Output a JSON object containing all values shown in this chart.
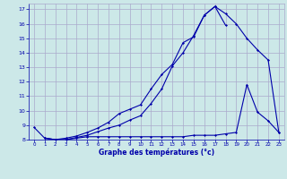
{
  "title": "Graphe des températures (°c)",
  "bg_color": "#cce8e8",
  "grid_color": "#aaaacc",
  "line_color": "#0000aa",
  "xlim": [
    -0.5,
    23.5
  ],
  "ylim": [
    8,
    17.4
  ],
  "yticks": [
    8,
    9,
    10,
    11,
    12,
    13,
    14,
    15,
    16,
    17
  ],
  "xticks": [
    0,
    1,
    2,
    3,
    4,
    5,
    6,
    7,
    8,
    9,
    10,
    11,
    12,
    13,
    14,
    15,
    16,
    17,
    18,
    19,
    20,
    21,
    22,
    23
  ],
  "line1_x": [
    0,
    1,
    2,
    3,
    4,
    5,
    6,
    7,
    8,
    9,
    10,
    11,
    12,
    13,
    14,
    15,
    16,
    17,
    18
  ],
  "line1_y": [
    8.85,
    8.1,
    8.0,
    8.1,
    8.25,
    8.5,
    8.8,
    9.2,
    9.8,
    10.1,
    10.4,
    11.5,
    12.5,
    13.2,
    14.7,
    15.1,
    16.6,
    17.2,
    15.9
  ],
  "line2_x": [
    1,
    2,
    3,
    4,
    5,
    6,
    7,
    8,
    9,
    10,
    11,
    12,
    13,
    14,
    15,
    16,
    17,
    18,
    19,
    20,
    21,
    22,
    23
  ],
  "line2_y": [
    8.1,
    8.0,
    8.0,
    8.15,
    8.3,
    8.55,
    8.8,
    9.0,
    9.35,
    9.65,
    10.5,
    11.5,
    13.1,
    14.0,
    15.2,
    16.6,
    17.2,
    16.7,
    16.0,
    15.0,
    14.2,
    13.5,
    8.5
  ],
  "line3_x": [
    1,
    2,
    3,
    4,
    5,
    6,
    7,
    8,
    9,
    10,
    11,
    12,
    13,
    14,
    15,
    16,
    17,
    18,
    19,
    20,
    21,
    22,
    23
  ],
  "line3_y": [
    8.1,
    8.0,
    8.0,
    8.1,
    8.2,
    8.2,
    8.2,
    8.2,
    8.2,
    8.2,
    8.2,
    8.2,
    8.2,
    8.2,
    8.3,
    8.3,
    8.3,
    8.4,
    8.5,
    11.8,
    9.9,
    9.3,
    8.5
  ]
}
